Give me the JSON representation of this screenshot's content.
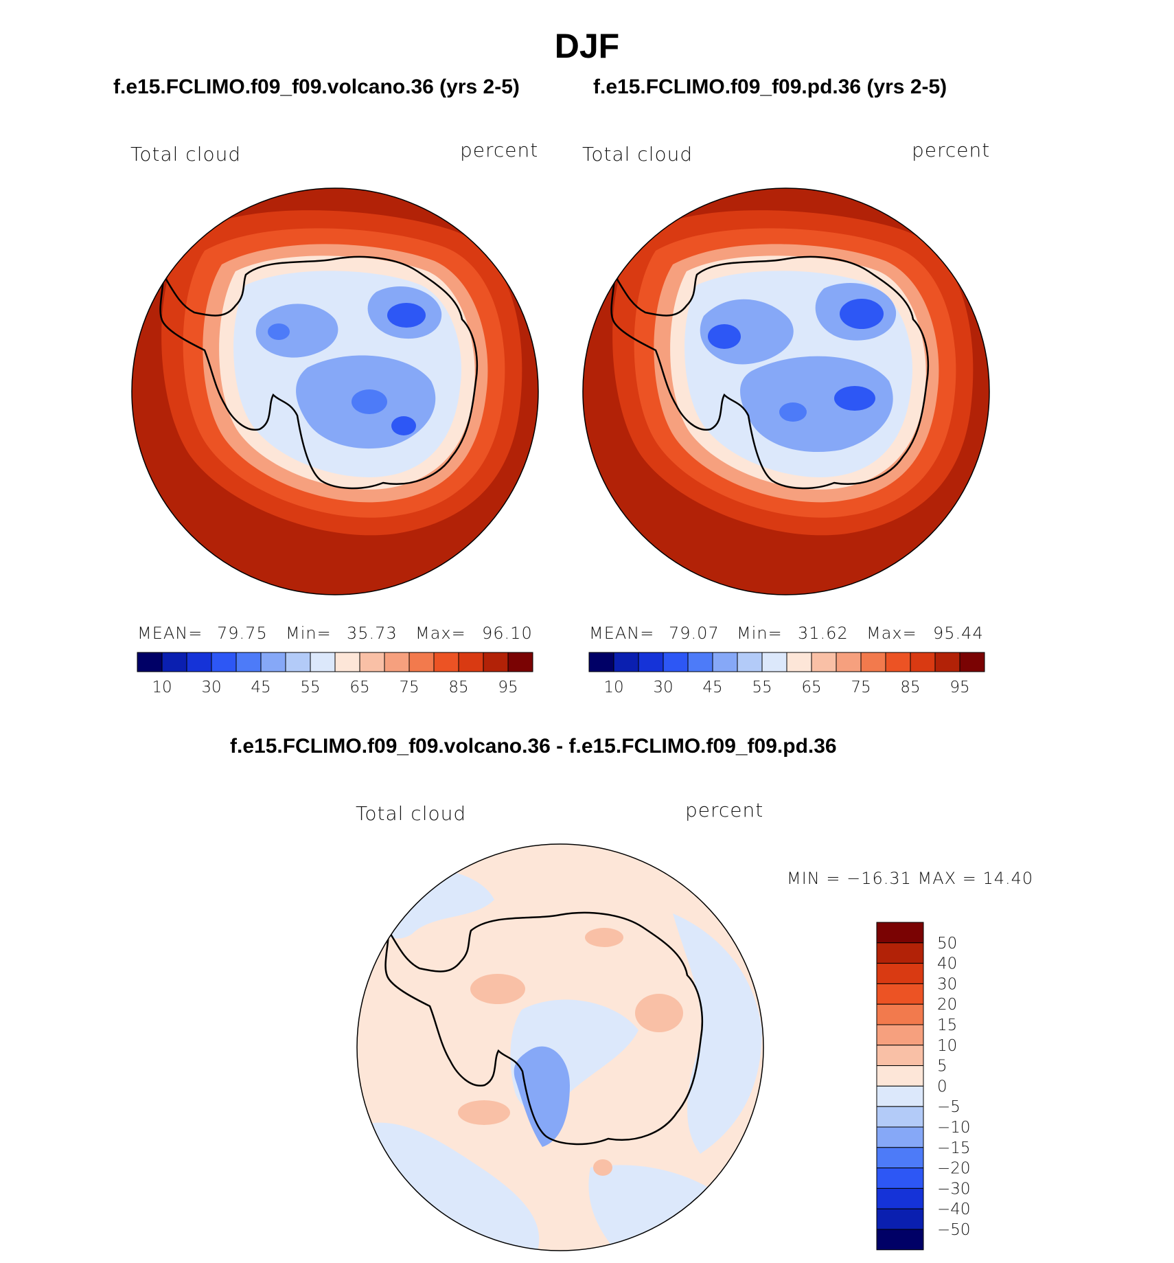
{
  "title": "DJF",
  "panels": [
    {
      "case": "f.e15.FCLIMO.f09_f09.volcano.36 (yrs 2-5)",
      "field": "Total cloud",
      "units": "percent",
      "stats": {
        "mean_label": "MEAN=",
        "mean": "79.75",
        "min_label": "Min=",
        "min": "35.73",
        "max_label": "Max=",
        "max": "96.10"
      }
    },
    {
      "case": "f.e15.FCLIMO.f09_f09.pd.36 (yrs 2-5)",
      "field": "Total cloud",
      "units": "percent",
      "stats": {
        "mean_label": "MEAN=",
        "mean": "79.07",
        "min_label": "Min=",
        "min": "31.62",
        "max_label": "Max=",
        "max": "95.44"
      }
    }
  ],
  "diff_panel": {
    "case": "f.e15.FCLIMO.f09_f09.volcano.36 - f.e15.FCLIMO.f09_f09.pd.36",
    "field": "Total cloud",
    "units": "percent",
    "minmax": "MIN = −16.31 MAX =   14.40"
  },
  "colorbar_abs": {
    "colors": [
      "#000066",
      "#0a1fb0",
      "#1533d8",
      "#2d57f5",
      "#4d7bf8",
      "#86a8f7",
      "#b3cbf8",
      "#dce8fb",
      "#fde6d8",
      "#f9c0a6",
      "#f6a07e",
      "#f27a4d",
      "#ec5324",
      "#d93a12",
      "#b22207",
      "#7a0303"
    ],
    "tick_labels": [
      "10",
      "30",
      "45",
      "55",
      "65",
      "75",
      "85",
      "95"
    ]
  },
  "colorbar_diff": {
    "colors": [
      "#7a0303",
      "#b22207",
      "#d93a12",
      "#ec5324",
      "#f27a4d",
      "#f6a07e",
      "#f9c0a6",
      "#fde6d8",
      "#dce8fb",
      "#b3cbf8",
      "#86a8f7",
      "#4d7bf8",
      "#2d57f5",
      "#1533d8",
      "#0a1fb0",
      "#000066"
    ],
    "tick_labels": [
      "50",
      "40",
      "30",
      "20",
      "15",
      "10",
      "5",
      "0",
      "−5",
      "−10",
      "−15",
      "−20",
      "−30",
      "−40",
      "−50"
    ]
  },
  "map_colors": {
    "ocean_abs": "#b22207",
    "ring_high": "#d93a12",
    "ring_mid": "#ec5324",
    "ring_low": "#f6a07e",
    "coast_pale": "#fde6d8",
    "interior_pale": "#dce8fb",
    "interior_blue": "#86a8f7",
    "interior_deep": "#2d57f5",
    "diff_pos": "#fde6d8",
    "diff_pos2": "#f9c0a6",
    "diff_neg": "#dce8fb",
    "diff_neg2": "#86a8f7",
    "coastline": "#000000"
  }
}
